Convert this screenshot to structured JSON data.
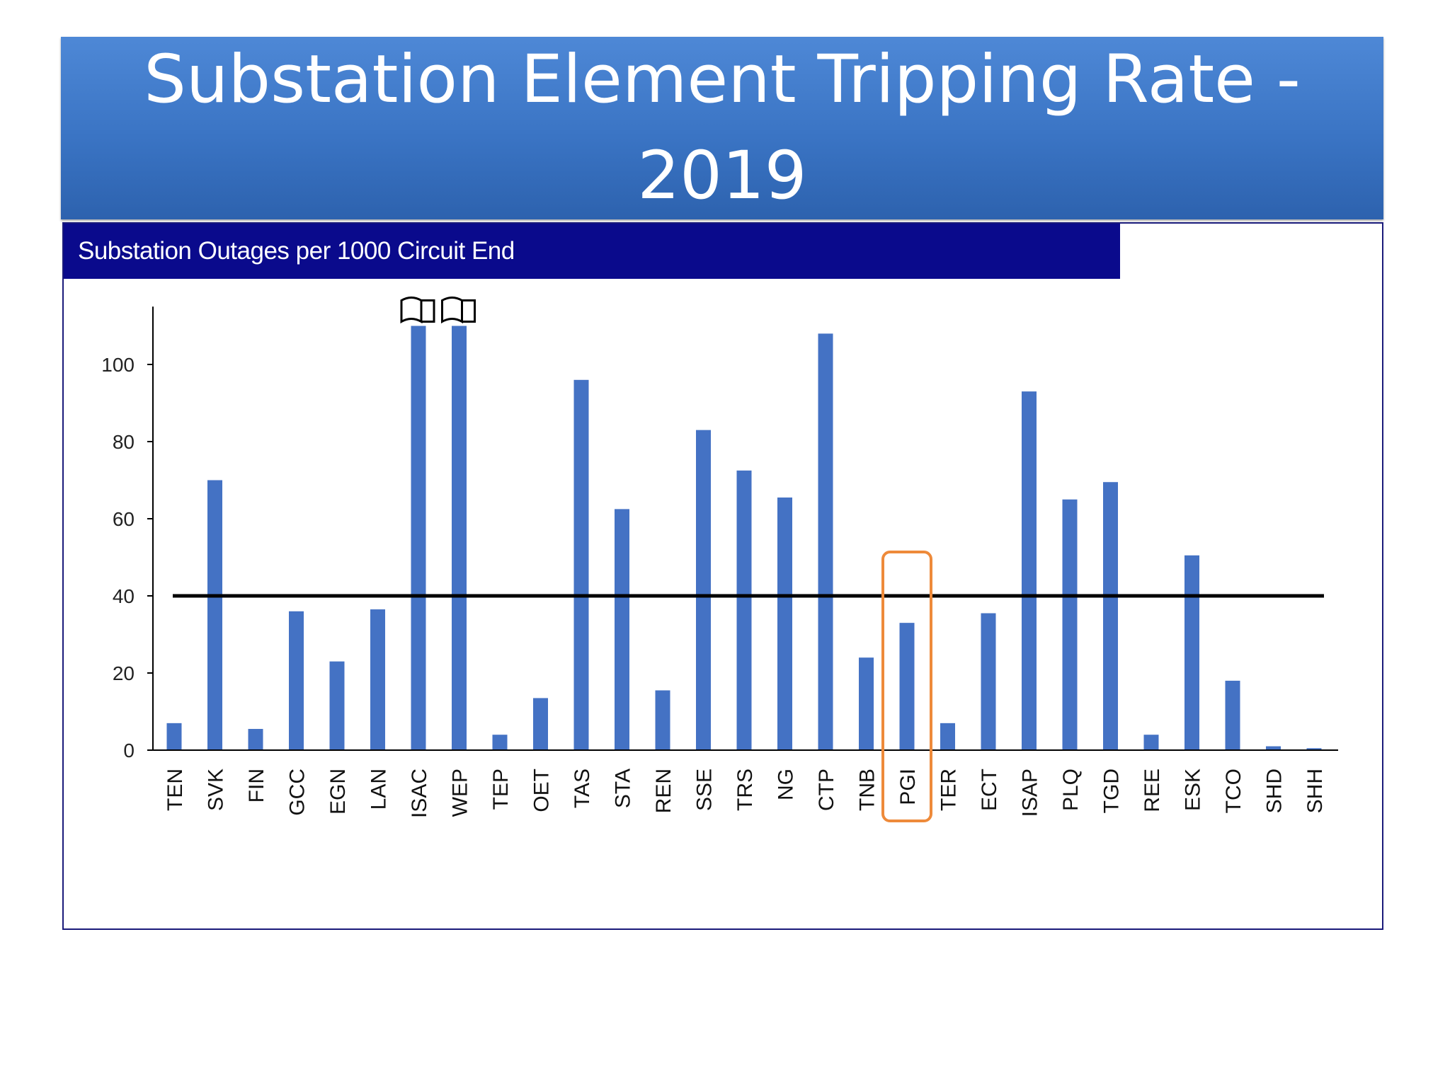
{
  "slide": {
    "title": "Substation Element Tripping Rate - 2019"
  },
  "chart_data": {
    "type": "bar",
    "title": "Substation Outages per 1000 Circuit End",
    "xlabel": "",
    "ylabel": "",
    "ylim": [
      0,
      110
    ],
    "yticks": [
      0,
      20,
      40,
      60,
      80,
      100
    ],
    "categories": [
      "TEN",
      "SVK",
      "FIN",
      "GCC",
      "EGN",
      "LAN",
      "ISAC",
      "WEP",
      "TEP",
      "OET",
      "TAS",
      "STA",
      "REN",
      "SSE",
      "TRS",
      "NG",
      "CTP",
      "TNB",
      "PGI",
      "TER",
      "ECT",
      "ISAP",
      "PLQ",
      "TGD",
      "REE",
      "ESK",
      "TCO",
      "SHD",
      "SHH"
    ],
    "values": [
      7,
      70,
      5.5,
      36,
      23,
      36.5,
      110,
      110,
      4,
      13.5,
      96,
      62.5,
      15.5,
      83,
      72.5,
      65.5,
      108,
      24,
      33,
      7,
      35.5,
      93,
      65,
      69.5,
      4,
      50.5,
      18,
      1,
      0.5
    ],
    "truncated": [
      "ISAC",
      "WEP"
    ],
    "reference_line": 40,
    "highlighted_category": "PGI",
    "colors": {
      "bar": "#4472c4",
      "reference_line": "#000000",
      "highlight": "#ee8a3a",
      "header_bg": "#0a0a8c"
    }
  }
}
